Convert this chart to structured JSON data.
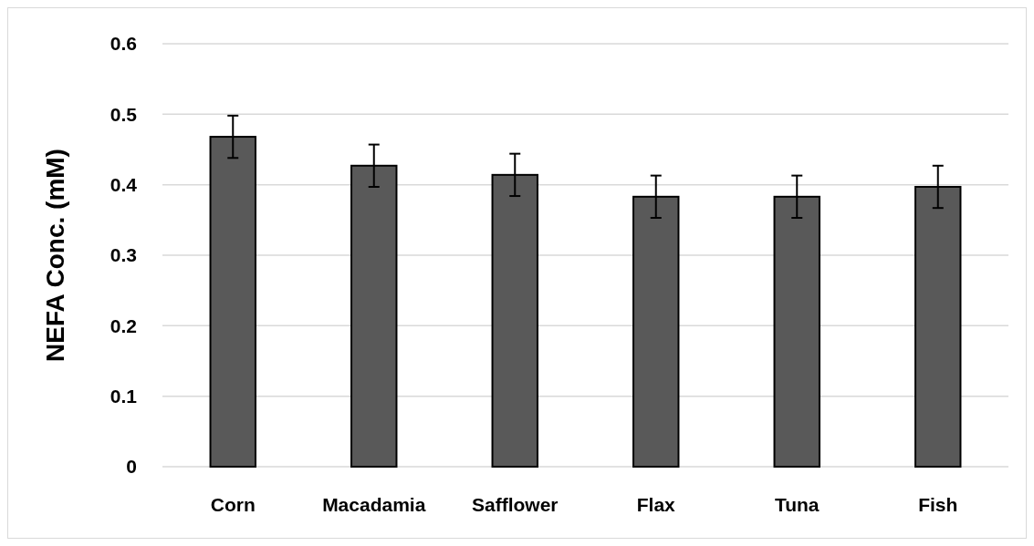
{
  "chart_data": {
    "type": "bar",
    "ylabel": "NEFA Conc. (mM)",
    "categories": [
      "Corn",
      "Macadamia",
      "Safflower",
      "Flax",
      "Tuna",
      "Fish"
    ],
    "values": [
      0.468,
      0.427,
      0.414,
      0.383,
      0.383,
      0.397
    ],
    "errors": [
      0.03,
      0.03,
      0.03,
      0.03,
      0.03,
      0.03
    ],
    "color": "#595959",
    "ylim": [
      0,
      0.6
    ],
    "yticks": [
      0,
      0.1,
      0.2,
      0.3,
      0.4,
      0.5,
      0.6
    ],
    "grid": "y"
  }
}
